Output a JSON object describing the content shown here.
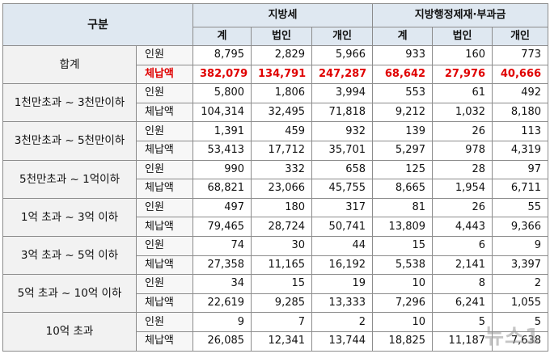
{
  "header": {
    "category": "구분",
    "group1": "지방세",
    "group2": "지방행정제재·부과금",
    "sub": [
      "계",
      "법인",
      "개인",
      "계",
      "법인",
      "개인"
    ]
  },
  "rows": [
    {
      "category": "합계",
      "people": {
        "label": "인원",
        "values": [
          "8,795",
          "2,829",
          "5,966",
          "933",
          "160",
          "773"
        ]
      },
      "amount": {
        "label": "체납액",
        "values": [
          "382,079",
          "134,791",
          "247,287",
          "68,642",
          "27,976",
          "40,666"
        ]
      }
    },
    {
      "category": "1천만초과 ~ 3천만이하",
      "people": {
        "label": "인원",
        "values": [
          "5,800",
          "1,806",
          "3,994",
          "553",
          "61",
          "492"
        ]
      },
      "amount": {
        "label": "체납액",
        "values": [
          "104,314",
          "32,495",
          "71,818",
          "9,212",
          "1,032",
          "8,180"
        ]
      }
    },
    {
      "category": "3천만초과 ~ 5천만이하",
      "people": {
        "label": "인원",
        "values": [
          "1,391",
          "459",
          "932",
          "139",
          "26",
          "113"
        ]
      },
      "amount": {
        "label": "체납액",
        "values": [
          "53,413",
          "17,712",
          "35,701",
          "5,297",
          "978",
          "4,319"
        ]
      }
    },
    {
      "category": "5천만초과 ~ 1억이하",
      "people": {
        "label": "인원",
        "values": [
          "990",
          "332",
          "658",
          "125",
          "28",
          "97"
        ]
      },
      "amount": {
        "label": "체납액",
        "values": [
          "68,821",
          "23,066",
          "45,755",
          "8,665",
          "1,954",
          "6,711"
        ]
      }
    },
    {
      "category": "1억 초과 ~ 3억 이하",
      "people": {
        "label": "인원",
        "values": [
          "497",
          "180",
          "317",
          "81",
          "26",
          "55"
        ]
      },
      "amount": {
        "label": "체납액",
        "values": [
          "79,465",
          "28,724",
          "50,741",
          "13,809",
          "4,443",
          "9,366"
        ]
      }
    },
    {
      "category": "3억 초과 ~ 5억 이하",
      "people": {
        "label": "인원",
        "values": [
          "74",
          "30",
          "44",
          "15",
          "6",
          "9"
        ]
      },
      "amount": {
        "label": "체납액",
        "values": [
          "27,358",
          "11,165",
          "16,192",
          "5,538",
          "2,141",
          "3,397"
        ]
      }
    },
    {
      "category": "5억 초과 ~ 10억 이하",
      "people": {
        "label": "인원",
        "values": [
          "34",
          "15",
          "19",
          "10",
          "8",
          "2"
        ]
      },
      "amount": {
        "label": "체납액",
        "values": [
          "22,619",
          "9,285",
          "13,333",
          "7,296",
          "6,241",
          "1,055"
        ]
      }
    },
    {
      "category": "10억 초과",
      "people": {
        "label": "인원",
        "values": [
          "9",
          "7",
          "2",
          "10",
          "5",
          "5"
        ]
      },
      "amount": {
        "label": "체납액",
        "values": [
          "26,085",
          "12,341",
          "13,744",
          "18,825",
          "11,187",
          "7,638"
        ]
      }
    }
  ],
  "highlight_color": "#e00000",
  "watermark": "뉴스1"
}
